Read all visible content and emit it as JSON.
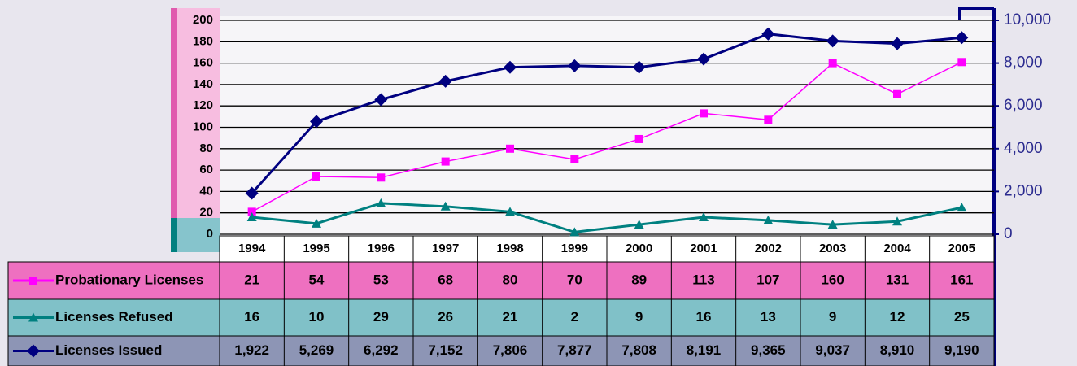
{
  "chart_data": {
    "type": "line",
    "categories": [
      "1994",
      "1995",
      "1996",
      "1997",
      "1998",
      "1999",
      "2000",
      "2001",
      "2002",
      "2003",
      "2004",
      "2005"
    ],
    "series": [
      {
        "name": "Probationary Licenses",
        "color": "#ff00ff",
        "marker": "square",
        "values": [
          21,
          54,
          53,
          68,
          80,
          70,
          89,
          113,
          107,
          160,
          131,
          161
        ]
      },
      {
        "name": "Licenses Refused",
        "color": "#008080",
        "marker": "triangle",
        "values": [
          16,
          10,
          29,
          26,
          21,
          2,
          9,
          16,
          13,
          9,
          12,
          25
        ]
      },
      {
        "name": "Licenses Issued",
        "color": "#000080",
        "marker": "diamond",
        "axis": "y2",
        "values": [
          1922,
          5269,
          6292,
          7152,
          7806,
          7877,
          7808,
          8191,
          9365,
          9037,
          8910,
          9190
        ],
        "value_labels": [
          "1,922",
          "5,269",
          "6,292",
          "7,152",
          "7,806",
          "7,877",
          "7,808",
          "8,191",
          "9,365",
          "9,037",
          "8,910",
          "9,190"
        ]
      }
    ],
    "ylim": [
      0,
      200
    ],
    "yticks": [
      0,
      20,
      40,
      60,
      80,
      100,
      120,
      140,
      160,
      180,
      200
    ],
    "y2lim": [
      0,
      10000
    ],
    "y2ticks": [
      0,
      {
        "value": 2000,
        "label": "2,000"
      },
      {
        "value": 4000,
        "label": "4,000"
      },
      {
        "value": 6000,
        "label": "6,000"
      },
      {
        "value": 8000,
        "label": "8,000"
      },
      {
        "value": 10000,
        "label": "10,000"
      }
    ],
    "grid": true
  }
}
